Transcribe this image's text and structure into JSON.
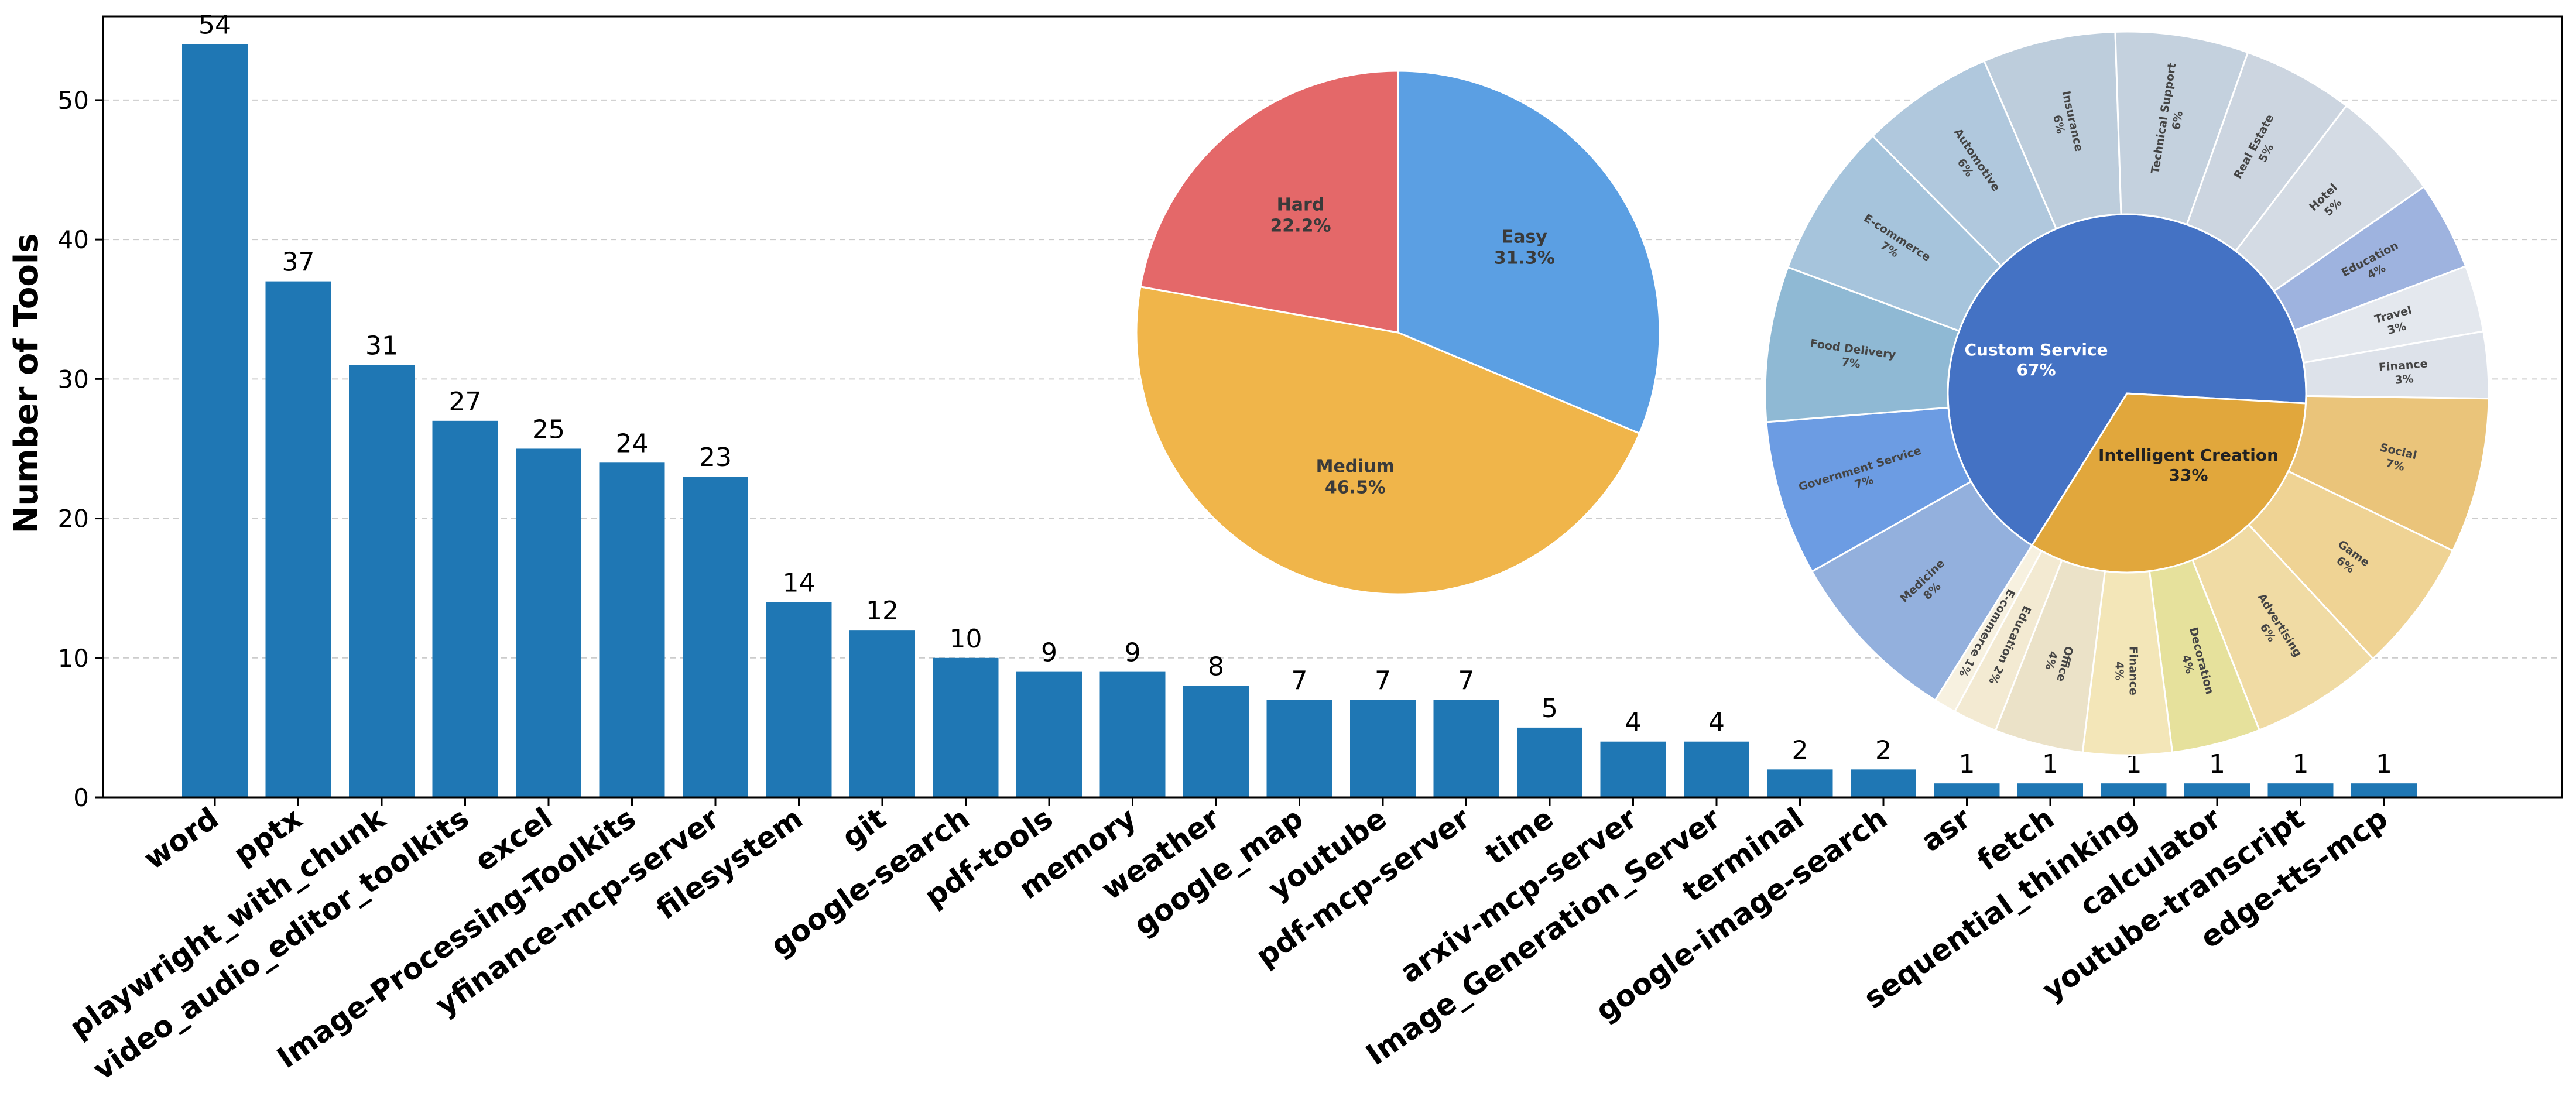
{
  "chart_data": [
    {
      "type": "bar",
      "ylabel": "Number of Tools",
      "ylim": [
        0,
        56
      ],
      "yticks": [
        0,
        10,
        20,
        30,
        40,
        50
      ],
      "grid": "horizontal dashed",
      "color": "#1f77b4",
      "categories": [
        "word",
        "pptx",
        "playwright_with_chunk",
        "video_audio_editor_toolkits",
        "excel",
        "Image-Processing-Toolkits",
        "yfinance-mcp-server",
        "filesystem",
        "git",
        "google-search",
        "pdf-tools",
        "memory",
        "weather",
        "google_map",
        "youtube",
        "pdf-mcp-server",
        "time",
        "arxiv-mcp-server",
        "Image_Generation_Server",
        "terminal",
        "google-image-search",
        "asr",
        "fetch",
        "sequential_thinking",
        "calculator",
        "youtube-transcript",
        "edge-tts-mcp"
      ],
      "values": [
        54,
        37,
        31,
        27,
        25,
        24,
        23,
        14,
        12,
        10,
        9,
        9,
        8,
        7,
        7,
        7,
        5,
        4,
        4,
        2,
        2,
        1,
        1,
        1,
        1,
        1,
        1
      ]
    },
    {
      "type": "pie",
      "slices": [
        {
          "label": "Easy",
          "value": 31.3,
          "pct": "31.3%",
          "color": "#5b9fe3"
        },
        {
          "label": "Medium",
          "value": 46.5,
          "pct": "46.5%",
          "color": "#f0b54a"
        },
        {
          "label": "Hard",
          "value": 22.2,
          "pct": "22.2%",
          "color": "#e46869"
        }
      ]
    },
    {
      "type": "pie",
      "subtype": "sunburst",
      "inner": [
        {
          "label": "Custom Service",
          "value": 67,
          "pct": "67%",
          "color": "#4472c4"
        },
        {
          "label": "Intelligent Creation",
          "value": 33,
          "pct": "33%",
          "color": "#e1a73c"
        }
      ],
      "outer": [
        {
          "label": "Medicine",
          "pct": "8%",
          "value": 8,
          "parent": "Custom Service",
          "color": "#93b0dd"
        },
        {
          "label": "Government Service",
          "pct": "7%",
          "value": 7,
          "parent": "Custom Service",
          "color": "#6c9ce3"
        },
        {
          "label": "Food Delivery",
          "pct": "7%",
          "value": 7,
          "parent": "Custom Service",
          "color": "#8fb9d4"
        },
        {
          "label": "E-commerce",
          "pct": "7%",
          "value": 7,
          "parent": "Custom Service",
          "color": "#a6c4dc"
        },
        {
          "label": "Automotive",
          "pct": "6%",
          "value": 6,
          "parent": "Custom Service",
          "color": "#b0c8dd"
        },
        {
          "label": "Insurance",
          "pct": "6%",
          "value": 6,
          "parent": "Custom Service",
          "color": "#bdcddc"
        },
        {
          "label": "Technical Support",
          "pct": "6%",
          "value": 6,
          "parent": "Custom Service",
          "color": "#c4d1de"
        },
        {
          "label": "Real Estate",
          "pct": "5%",
          "value": 5,
          "parent": "Custom Service",
          "color": "#ccd5e0"
        },
        {
          "label": "Hotel",
          "pct": "5%",
          "value": 5,
          "parent": "Custom Service",
          "color": "#d4dbe4"
        },
        {
          "label": "Education",
          "pct": "4%",
          "value": 4,
          "parent": "Custom Service",
          "color": "#9eb3df"
        },
        {
          "label": "Travel",
          "pct": "3%",
          "value": 3,
          "parent": "Custom Service",
          "color": "#e4e8ee"
        },
        {
          "label": "Finance",
          "pct": "3%",
          "value": 3,
          "parent": "Custom Service",
          "color": "#dde2ea"
        },
        {
          "label": "Social",
          "pct": "7%",
          "value": 7,
          "parent": "Intelligent Creation",
          "color": "#eac47a"
        },
        {
          "label": "Game",
          "pct": "6%",
          "value": 6,
          "parent": "Intelligent Creation",
          "color": "#efd394"
        },
        {
          "label": "Advertising",
          "pct": "6%",
          "value": 6,
          "parent": "Intelligent Creation",
          "color": "#f0dba4"
        },
        {
          "label": "Decoration",
          "pct": "4%",
          "value": 4,
          "parent": "Intelligent Creation",
          "color": "#e6e19c"
        },
        {
          "label": "Finance",
          "pct": "4%",
          "value": 4,
          "parent": "Intelligent Creation",
          "color": "#f3e6b8"
        },
        {
          "label": "Office",
          "pct": "4%",
          "value": 4,
          "parent": "Intelligent Creation",
          "color": "#ebe2c8"
        },
        {
          "label": "Education",
          "pct": "2%",
          "value": 2,
          "parent": "Intelligent Creation",
          "color": "#f3ead2"
        },
        {
          "label": "E-commerce",
          "pct": "1%",
          "value": 1,
          "parent": "Intelligent Creation",
          "color": "#f7f1e0"
        }
      ]
    }
  ]
}
